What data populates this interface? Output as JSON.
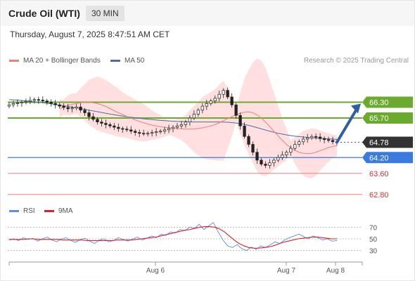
{
  "header": {
    "title": "Crude Oil (WTI)",
    "timeframe": "30 MIN",
    "timestamp": "Thursday, August 7, 2025 8:47:51 AM CET"
  },
  "legend": {
    "ma20_label": "MA 20 + Bollinger Bands",
    "ma50_label": "MA 50",
    "credit": "Research © 2025 Trading Central"
  },
  "rsi_legend": {
    "rsi_label": "RSI",
    "ma9_label": "9MA"
  },
  "colors": {
    "resistance": "#6aab2e",
    "support": "#3b7be0",
    "target": "#f08080",
    "current_price_bg": "#333333",
    "ma20": "#f08080",
    "ma50": "#4a6ea8",
    "band_fill": "#ffd9d9",
    "arrow": "#2f5ea3",
    "candle_up": "#3a9a3a",
    "candle_down": "#d43030",
    "rsi_line": "#5b8def",
    "rsi_ma": "#dd2222"
  },
  "chart_data": [
    {
      "type": "candlestick",
      "title": "Crude Oil (WTI)",
      "timeframe": "30 MIN",
      "x_ticks": [
        "Aug 6",
        "Aug 7",
        "Aug 8"
      ],
      "y_range": [
        62.5,
        67.3
      ],
      "price_levels": [
        {
          "value": 66.3,
          "label": "66.30",
          "kind": "resistance"
        },
        {
          "value": 65.7,
          "label": "65.70",
          "kind": "resistance"
        },
        {
          "value": 64.78,
          "label": "64.78",
          "kind": "current"
        },
        {
          "value": 64.2,
          "label": "64.20",
          "kind": "pivot"
        },
        {
          "value": 63.6,
          "label": "63.60",
          "kind": "support"
        },
        {
          "value": 62.8,
          "label": "62.80",
          "kind": "support"
        }
      ],
      "projection": {
        "from": 64.78,
        "to": 66.3,
        "direction": "up"
      },
      "closes": [
        66.2,
        66.25,
        66.27,
        66.3,
        66.33,
        66.37,
        66.4,
        66.38,
        66.35,
        66.3,
        66.25,
        66.2,
        66.15,
        66.1,
        66.05,
        66.08,
        66.12,
        66.0,
        65.9,
        65.75,
        65.65,
        65.55,
        65.5,
        65.45,
        65.4,
        65.35,
        65.3,
        65.28,
        65.25,
        65.2,
        65.15,
        65.12,
        65.1,
        65.12,
        65.15,
        65.18,
        65.2,
        65.25,
        65.3,
        65.35,
        65.4,
        65.45,
        65.55,
        65.7,
        65.85,
        66.0,
        66.15,
        66.25,
        66.35,
        66.45,
        66.6,
        66.75,
        66.5,
        66.2,
        65.8,
        65.4,
        65.0,
        64.7,
        64.4,
        64.1,
        63.95,
        63.9,
        64.0,
        64.1,
        64.2,
        64.3,
        64.4,
        64.55,
        64.7,
        64.8,
        64.9,
        64.95,
        65.0,
        64.98,
        64.92,
        64.88,
        64.85,
        64.8,
        64.78
      ],
      "ma20": [
        66.05,
        66.12,
        66.18,
        66.22,
        66.25,
        66.28,
        66.3,
        66.3,
        66.28,
        66.25,
        66.2,
        66.14,
        66.06,
        65.98,
        65.9,
        65.83,
        65.76,
        65.7,
        65.63,
        65.57,
        65.52,
        65.47,
        65.43,
        65.4,
        65.37,
        65.35,
        65.33,
        65.31,
        65.3,
        65.29,
        65.28,
        65.28,
        65.28,
        65.3,
        65.33,
        65.36,
        65.4,
        65.45,
        65.52,
        65.6,
        65.68,
        65.75,
        65.82,
        65.88,
        65.92,
        65.93,
        65.9,
        65.82,
        65.7,
        65.55,
        65.38,
        65.2,
        65.02,
        64.85,
        64.7,
        64.57,
        64.47,
        64.4,
        64.36,
        64.35,
        64.36,
        64.4,
        64.46,
        64.52,
        64.58,
        64.62,
        64.65
      ],
      "ma50": [
        66.4,
        66.38,
        66.35,
        66.32,
        66.28,
        66.24,
        66.19,
        66.14,
        66.09,
        66.03,
        65.97,
        65.91,
        65.85,
        65.8,
        65.75,
        65.71,
        65.67,
        65.64,
        65.61,
        65.59,
        65.57,
        65.56,
        65.55,
        65.55,
        65.55,
        65.55,
        65.54,
        65.51,
        65.46,
        65.38,
        65.29,
        65.2,
        65.12,
        65.06,
        65.01,
        64.98,
        64.95,
        64.93,
        64.91,
        64.89
      ],
      "bollinger": {
        "upper_peak": 67.2,
        "lower_trough": 63.15
      }
    },
    {
      "type": "line",
      "title": "RSI",
      "y_ticks": [
        30,
        50,
        70
      ],
      "y_range": [
        15,
        85
      ],
      "series": [
        {
          "name": "RSI",
          "values": [
            48,
            50,
            47,
            52,
            49,
            51,
            46,
            50,
            53,
            48,
            45,
            50,
            52,
            47,
            44,
            49,
            51,
            46,
            42,
            48,
            50,
            45,
            47,
            52,
            49,
            46,
            50,
            53,
            48,
            51,
            55,
            52,
            58,
            56,
            62,
            60,
            66,
            64,
            70,
            68,
            75,
            66,
            72,
            78,
            62,
            48,
            38,
            35,
            40,
            33,
            30,
            36,
            32,
            38,
            35,
            40,
            45,
            42,
            48,
            52,
            55,
            58,
            54,
            50,
            55,
            52,
            48,
            50,
            46,
            47
          ]
        },
        {
          "name": "9MA",
          "values": [
            49,
            49,
            49,
            49,
            50,
            50,
            49,
            49,
            49,
            49,
            49,
            48,
            48,
            48,
            48,
            48,
            47,
            47,
            47,
            47,
            47,
            47,
            48,
            48,
            48,
            48,
            49,
            50,
            51,
            52,
            53,
            55,
            57,
            59,
            61,
            63,
            65,
            66,
            68,
            70,
            71,
            71,
            70,
            67,
            62,
            55,
            48,
            42,
            38,
            35,
            34,
            34,
            35,
            36,
            38,
            41,
            44,
            46,
            48,
            50,
            51,
            52,
            53,
            53,
            52,
            51,
            50,
            50
          ]
        }
      ]
    }
  ]
}
